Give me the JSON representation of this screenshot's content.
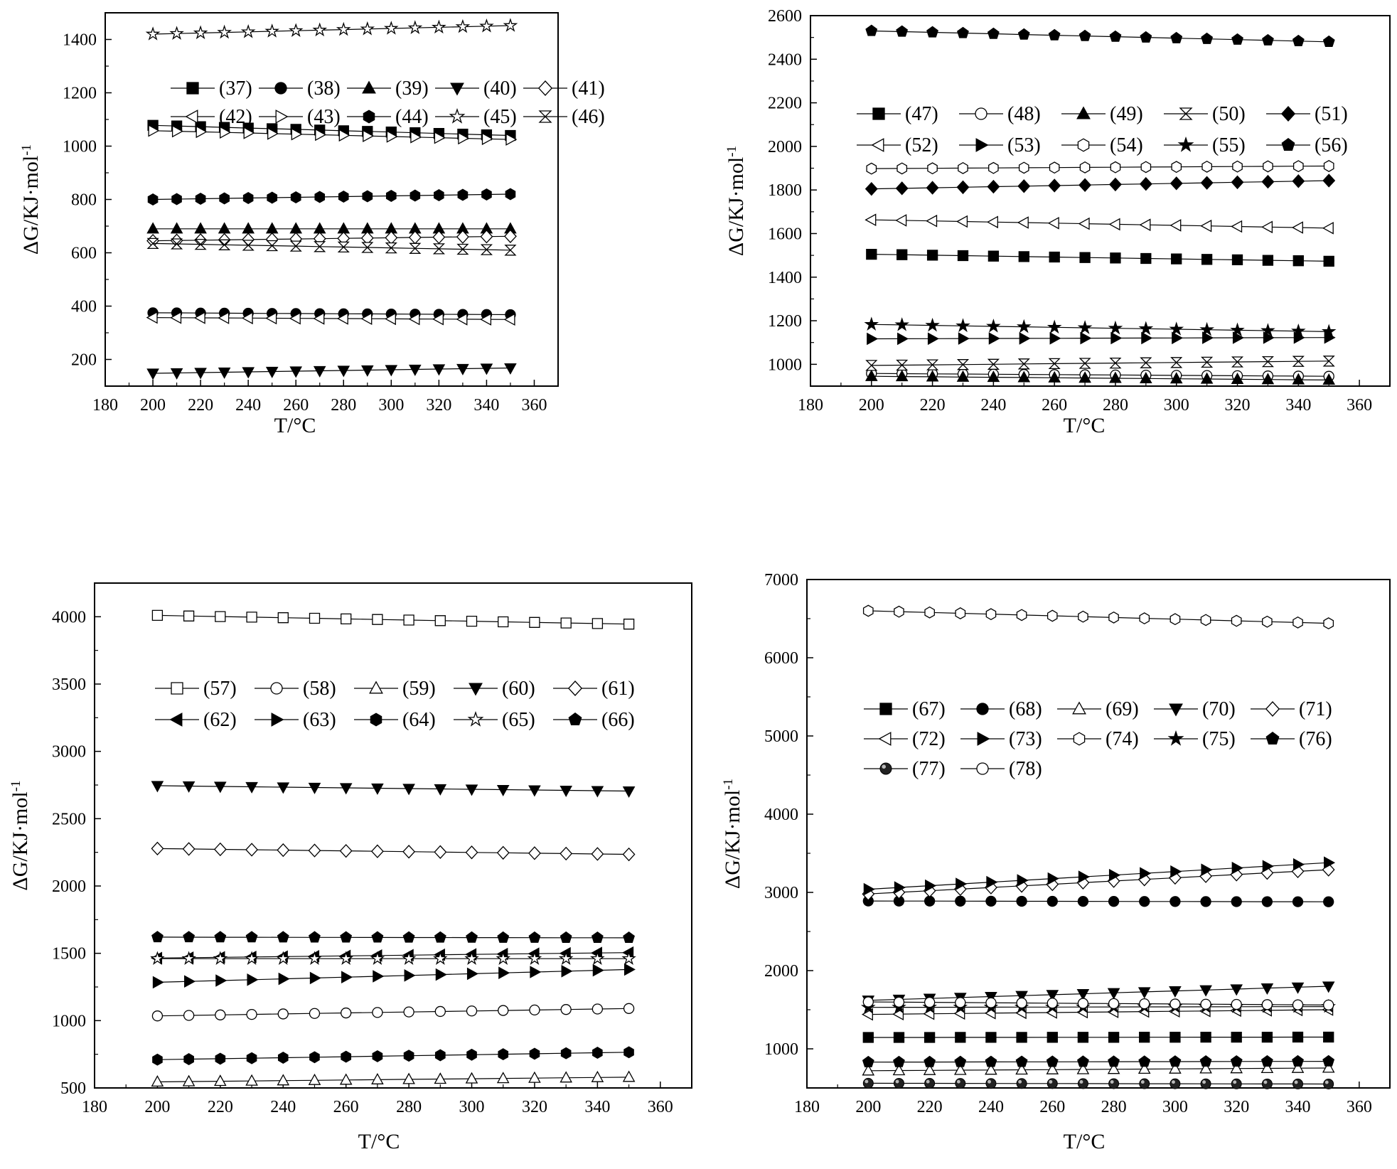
{
  "chart_data": [
    {
      "type": "line",
      "xlabel": "T/°C",
      "ylabel": "ΔG/KJ·mol-1",
      "xlim": [
        180,
        370
      ],
      "ylim": [
        100,
        1500
      ],
      "xticks": [
        180,
        200,
        220,
        240,
        260,
        280,
        300,
        320,
        340,
        360
      ],
      "yticks": [
        200,
        400,
        600,
        800,
        1000,
        1200,
        1400
      ],
      "x": [
        200,
        210,
        220,
        230,
        240,
        250,
        260,
        270,
        280,
        290,
        300,
        310,
        320,
        330,
        340,
        350
      ],
      "legend_columns": 5,
      "series": [
        {
          "name": "(37)",
          "marker": "square-filled",
          "start": 1078,
          "end": 1040
        },
        {
          "name": "(38)",
          "marker": "circle-filled",
          "start": 375,
          "end": 368
        },
        {
          "name": "(39)",
          "marker": "triangle-up-filled",
          "start": 690,
          "end": 690
        },
        {
          "name": "(40)",
          "marker": "triangle-down-filled",
          "start": 148,
          "end": 168
        },
        {
          "name": "(41)",
          "marker": "diamond-open",
          "start": 645,
          "end": 662
        },
        {
          "name": "(42)",
          "marker": "triangle-left-open",
          "start": 357,
          "end": 350
        },
        {
          "name": "(43)",
          "marker": "triangle-right-open",
          "start": 1058,
          "end": 1025
        },
        {
          "name": "(44)",
          "marker": "hexagon-filled",
          "start": 800,
          "end": 820
        },
        {
          "name": "(45)",
          "marker": "star-open",
          "start": 1420,
          "end": 1452
        },
        {
          "name": "(46)",
          "marker": "hourglass-open",
          "start": 635,
          "end": 610
        }
      ]
    },
    {
      "type": "line",
      "xlabel": "T/°C",
      "ylabel": "ΔG/KJ·mol-1",
      "xlim": [
        180,
        370
      ],
      "ylim": [
        900,
        2600
      ],
      "xticks": [
        180,
        200,
        220,
        240,
        260,
        280,
        300,
        320,
        340,
        360
      ],
      "yticks": [
        1000,
        1200,
        1400,
        1600,
        1800,
        2000,
        2200,
        2400,
        2600
      ],
      "x": [
        200,
        210,
        220,
        230,
        240,
        250,
        260,
        270,
        280,
        290,
        300,
        310,
        320,
        330,
        340,
        350
      ],
      "legend_columns": 5,
      "series": [
        {
          "name": "(47)",
          "marker": "square-filled",
          "start": 1505,
          "end": 1473
        },
        {
          "name": "(48)",
          "marker": "circle-open",
          "start": 958,
          "end": 945
        },
        {
          "name": "(49)",
          "marker": "triangle-up-filled",
          "start": 945,
          "end": 928
        },
        {
          "name": "(50)",
          "marker": "hourglass-open",
          "start": 995,
          "end": 1015
        },
        {
          "name": "(51)",
          "marker": "diamond-filled",
          "start": 1805,
          "end": 1843
        },
        {
          "name": "(52)",
          "marker": "triangle-left-open",
          "start": 1663,
          "end": 1625
        },
        {
          "name": "(53)",
          "marker": "triangle-right-filled",
          "start": 1117,
          "end": 1123
        },
        {
          "name": "(54)",
          "marker": "hexagon-open",
          "start": 1898,
          "end": 1910
        },
        {
          "name": "(55)",
          "marker": "star-filled",
          "start": 1183,
          "end": 1150
        },
        {
          "name": "(56)",
          "marker": "pentagon-filled",
          "start": 2530,
          "end": 2480
        }
      ]
    },
    {
      "type": "line",
      "xlabel": "T/°C",
      "ylabel": "ΔG/KJ·mol-1",
      "xlim": [
        180,
        370
      ],
      "ylim": [
        500,
        4250
      ],
      "xticks": [
        180,
        200,
        220,
        240,
        260,
        280,
        300,
        320,
        340,
        360
      ],
      "yticks": [
        500,
        1000,
        1500,
        2000,
        2500,
        3000,
        3500,
        4000
      ],
      "x": [
        200,
        210,
        220,
        230,
        240,
        250,
        260,
        270,
        280,
        290,
        300,
        310,
        320,
        330,
        340,
        350
      ],
      "legend_columns": 5,
      "series": [
        {
          "name": "(57)",
          "marker": "square-open",
          "start": 4010,
          "end": 3945
        },
        {
          "name": "(58)",
          "marker": "circle-open",
          "start": 1035,
          "end": 1090
        },
        {
          "name": "(59)",
          "marker": "triangle-up-open",
          "start": 545,
          "end": 580
        },
        {
          "name": "(60)",
          "marker": "triangle-down-filled",
          "start": 2745,
          "end": 2705
        },
        {
          "name": "(61)",
          "marker": "diamond-open",
          "start": 2278,
          "end": 2235
        },
        {
          "name": "(62)",
          "marker": "triangle-left-filled",
          "start": 1465,
          "end": 1505
        },
        {
          "name": "(63)",
          "marker": "triangle-right-filled",
          "start": 1285,
          "end": 1380
        },
        {
          "name": "(64)",
          "marker": "hexagon-filled",
          "start": 710,
          "end": 765
        },
        {
          "name": "(65)",
          "marker": "star-open",
          "start": 1460,
          "end": 1460
        },
        {
          "name": "(66)",
          "marker": "pentagon-filled",
          "start": 1620,
          "end": 1615
        }
      ]
    },
    {
      "type": "line",
      "xlabel": "T/°C",
      "ylabel": "ΔG/KJ·mol-1",
      "xlim": [
        180,
        370
      ],
      "ylim": [
        500,
        7000
      ],
      "xticks": [
        180,
        200,
        220,
        240,
        260,
        280,
        300,
        320,
        340,
        360
      ],
      "yticks": [
        1000,
        2000,
        3000,
        4000,
        5000,
        6000,
        7000
      ],
      "x": [
        200,
        210,
        220,
        230,
        240,
        250,
        260,
        270,
        280,
        290,
        300,
        310,
        320,
        330,
        340,
        350
      ],
      "legend_columns": 5,
      "series": [
        {
          "name": "(67)",
          "marker": "square-filled",
          "start": 1145,
          "end": 1150
        },
        {
          "name": "(68)",
          "marker": "circle-filled",
          "start": 2890,
          "end": 2880
        },
        {
          "name": "(69)",
          "marker": "triangle-up-open",
          "start": 720,
          "end": 755
        },
        {
          "name": "(70)",
          "marker": "triangle-down-filled",
          "start": 1620,
          "end": 1800
        },
        {
          "name": "(71)",
          "marker": "diamond-open",
          "start": 2980,
          "end": 3290
        },
        {
          "name": "(72)",
          "marker": "triangle-left-open",
          "start": 1440,
          "end": 1500
        },
        {
          "name": "(73)",
          "marker": "triangle-right-filled",
          "start": 3040,
          "end": 3380
        },
        {
          "name": "(74)",
          "marker": "hexagon-open",
          "start": 6600,
          "end": 6440
        },
        {
          "name": "(75)",
          "marker": "star-filled",
          "start": 1530,
          "end": 1540
        },
        {
          "name": "(76)",
          "marker": "pentagon-filled",
          "start": 830,
          "end": 840
        },
        {
          "name": "(77)",
          "marker": "sphere",
          "start": 560,
          "end": 550
        },
        {
          "name": "(78)",
          "marker": "circle-open",
          "start": 1600,
          "end": 1560
        }
      ]
    }
  ]
}
